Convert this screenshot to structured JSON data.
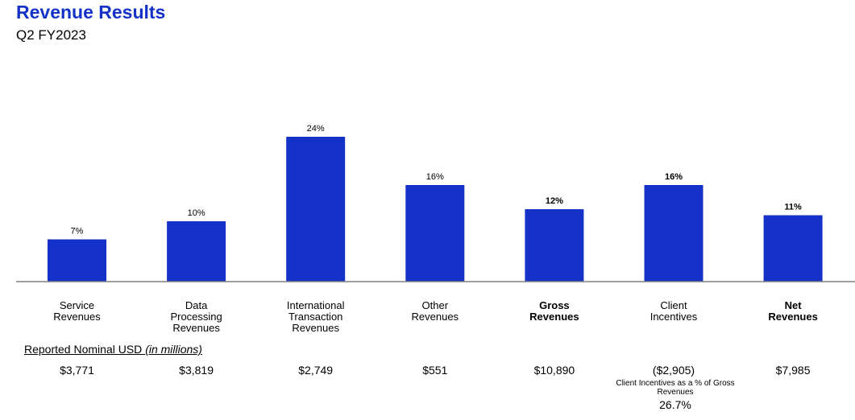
{
  "header": {
    "title": "Revenue Results",
    "subtitle": "Q2 FY2023"
  },
  "colors": {
    "title": "#1432c8",
    "bar": "#1432c8",
    "baseline": "#808080"
  },
  "chart_data": {
    "type": "bar",
    "categories": [
      "Service Revenues",
      "Data Processing Revenues",
      "International Transaction Revenues",
      "Other Revenues",
      "Gross Revenues",
      "Client Incentives",
      "Net Revenues"
    ],
    "category_lines": [
      [
        "Service",
        "Revenues"
      ],
      [
        "Data",
        "Processing",
        "Revenues"
      ],
      [
        "International",
        "Transaction",
        "Revenues"
      ],
      [
        "Other",
        "Revenues"
      ],
      [
        "Gross",
        "Revenues"
      ],
      [
        "Client",
        "Incentives"
      ],
      [
        "Net",
        "Revenues"
      ]
    ],
    "bold_categories": [
      false,
      false,
      false,
      false,
      true,
      false,
      true
    ],
    "values": [
      7,
      10,
      24,
      16,
      12,
      16,
      11
    ],
    "value_labels": [
      "7%",
      "10%",
      "24%",
      "16%",
      "12%",
      "16%",
      "11%"
    ],
    "bold_value_labels": [
      false,
      false,
      false,
      false,
      true,
      true,
      true
    ],
    "ylim": [
      0,
      24
    ],
    "grid": false,
    "legend": "none"
  },
  "table": {
    "units_label": "Reported Nominal USD",
    "units_suffix": "(in millions)",
    "amounts": [
      "$3,771",
      "$3,819",
      "$2,749",
      "$551",
      "$10,890",
      "($2,905)",
      "$7,985"
    ],
    "note_label": "Client Incentives as a % of Gross Revenues",
    "note_value": "26.7%"
  }
}
